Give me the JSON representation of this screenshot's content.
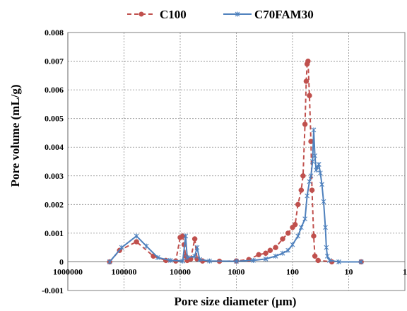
{
  "chart_data": {
    "type": "line",
    "xlabel": "Pore size diameter (µm)",
    "ylabel": "Pore volume (mL/g)",
    "x_scale": "log",
    "x_reversed": true,
    "xlim": [
      1000000,
      1
    ],
    "ylim": [
      -0.001,
      0.008
    ],
    "x_ticks": [
      1000000,
      100000,
      10000,
      1000,
      100,
      10,
      1
    ],
    "x_tick_labels": [
      "1000000",
      "100000",
      "10000",
      "1000",
      "100",
      "10",
      "1"
    ],
    "y_ticks": [
      -0.001,
      0,
      0.001,
      0.002,
      0.003,
      0.004,
      0.005,
      0.006,
      0.007,
      0.008
    ],
    "y_tick_labels": [
      "-0.001",
      "0",
      "0.001",
      "0.002",
      "0.003",
      "0.004",
      "0.005",
      "0.006",
      "0.007",
      "0.008"
    ],
    "grid": true,
    "legend_position": "top",
    "series": [
      {
        "name": "C100",
        "color": "#c0504d",
        "line_style": "dashed",
        "marker": "circle",
        "points": [
          [
            180000,
            0
          ],
          [
            120000,
            0.0004
          ],
          [
            60000,
            0.0007
          ],
          [
            30000,
            0.0002
          ],
          [
            18000,
            5e-05
          ],
          [
            12000,
            3e-05
          ],
          [
            10000,
            0.00085
          ],
          [
            9000,
            0.0009
          ],
          [
            8500,
            0.0006
          ],
          [
            8000,
            0.0002
          ],
          [
            7500,
            5e-05
          ],
          [
            6500,
            0.0001
          ],
          [
            5500,
            0.0008
          ],
          [
            5000,
            0.0001
          ],
          [
            4000,
            3e-05
          ],
          [
            2000,
            2e-05
          ],
          [
            1000,
            3e-05
          ],
          [
            600,
            8e-05
          ],
          [
            400,
            0.00025
          ],
          [
            300,
            0.0003
          ],
          [
            250,
            0.0004
          ],
          [
            200,
            0.0005
          ],
          [
            150,
            0.0008
          ],
          [
            120,
            0.001
          ],
          [
            100,
            0.0012
          ],
          [
            90,
            0.0013
          ],
          [
            80,
            0.002
          ],
          [
            70,
            0.0025
          ],
          [
            65,
            0.003
          ],
          [
            60,
            0.0048
          ],
          [
            57,
            0.0063
          ],
          [
            55,
            0.0069
          ],
          [
            53,
            0.007
          ],
          [
            50,
            0.0058
          ],
          [
            47,
            0.0042
          ],
          [
            45,
            0.0025
          ],
          [
            42,
            0.0009
          ],
          [
            40,
            0.0002
          ],
          [
            35,
            5e-05
          ],
          [
            20,
            0
          ],
          [
            6,
            0
          ]
        ]
      },
      {
        "name": "C70FAM30",
        "color": "#4f81bd",
        "line_style": "solid",
        "marker": "x",
        "points": [
          [
            180000,
            0
          ],
          [
            110000,
            0.0005
          ],
          [
            60000,
            0.0009
          ],
          [
            40000,
            0.00055
          ],
          [
            25000,
            0.00015
          ],
          [
            15000,
            5e-05
          ],
          [
            9000,
            3e-05
          ],
          [
            8000,
            0.0009
          ],
          [
            7500,
            0.00015
          ],
          [
            5500,
            0.0002
          ],
          [
            5000,
            0.0005
          ],
          [
            4500,
            8e-05
          ],
          [
            3000,
            3e-05
          ],
          [
            1000,
            2e-05
          ],
          [
            500,
            5e-05
          ],
          [
            300,
            0.0001
          ],
          [
            200,
            0.0002
          ],
          [
            150,
            0.0003
          ],
          [
            120,
            0.0004
          ],
          [
            100,
            0.0006
          ],
          [
            80,
            0.0009
          ],
          [
            70,
            0.0012
          ],
          [
            60,
            0.0015
          ],
          [
            55,
            0.0023
          ],
          [
            50,
            0.0028
          ],
          [
            47,
            0.003
          ],
          [
            44,
            0.0035
          ],
          [
            42,
            0.0046
          ],
          [
            40,
            0.0037
          ],
          [
            38,
            0.0032
          ],
          [
            36,
            0.0033
          ],
          [
            34,
            0.0034
          ],
          [
            32,
            0.0031
          ],
          [
            30,
            0.0027
          ],
          [
            28,
            0.0021
          ],
          [
            26,
            0.0012
          ],
          [
            25,
            0.0005
          ],
          [
            24,
            0.0002
          ],
          [
            22,
            5e-05
          ],
          [
            15,
            0
          ],
          [
            6,
            0
          ]
        ]
      }
    ]
  }
}
